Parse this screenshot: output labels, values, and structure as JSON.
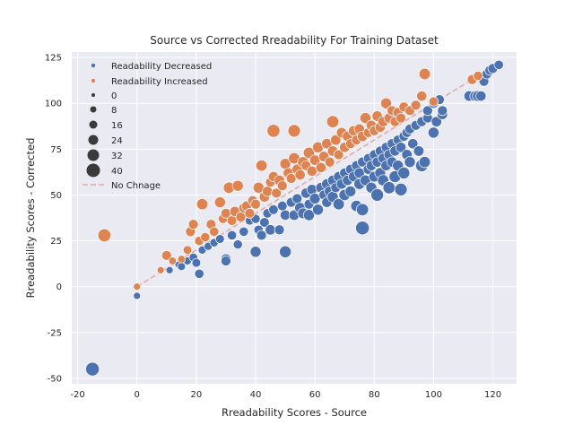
{
  "chart_data": {
    "type": "scatter",
    "title": "Source vs Corrected Rreadability For Training Dataset",
    "xlabel": "Rreadability Scores - Source",
    "ylabel": "Rreadability Scores - Corrected",
    "xlim": [
      -22,
      128
    ],
    "ylim": [
      -53,
      128
    ],
    "xticks": [
      -20,
      0,
      20,
      40,
      60,
      80,
      100,
      120
    ],
    "yticks": [
      -50,
      -25,
      0,
      25,
      50,
      75,
      100,
      125
    ],
    "grid": true,
    "legend_position": "upper-left",
    "colors": {
      "decreased": "#4c72b0",
      "increased": "#dd8452",
      "reference": "#e4a5a5",
      "background": "#eaeaf2"
    },
    "legend": {
      "hue_items": [
        "Readability Decreased",
        "Readability Increased"
      ],
      "size_items": [
        "0",
        "8",
        "16",
        "24",
        "32",
        "40"
      ],
      "line_item": "No Chnage"
    },
    "reference_line": {
      "name": "No Chnage",
      "from": [
        0,
        0
      ],
      "to": [
        122,
        122
      ]
    },
    "series": [
      {
        "name": "Readability Decreased",
        "points": [
          [
            -15,
            -45,
            30
          ],
          [
            0,
            -5,
            4
          ],
          [
            8,
            9,
            4
          ],
          [
            11,
            9,
            4
          ],
          [
            14,
            12,
            4
          ],
          [
            15,
            11,
            6
          ],
          [
            17,
            14,
            6
          ],
          [
            19,
            16,
            7
          ],
          [
            20,
            13,
            8
          ],
          [
            21,
            7,
            10
          ],
          [
            22,
            20,
            6
          ],
          [
            24,
            22,
            6
          ],
          [
            26,
            24,
            7
          ],
          [
            28,
            26,
            8
          ],
          [
            30,
            15,
            14
          ],
          [
            30,
            14,
            12
          ],
          [
            32,
            28,
            10
          ],
          [
            34,
            23,
            9
          ],
          [
            36,
            30,
            10
          ],
          [
            38,
            36,
            8
          ],
          [
            40,
            37,
            9
          ],
          [
            40,
            19,
            16
          ],
          [
            41,
            31,
            10
          ],
          [
            42,
            28,
            12
          ],
          [
            43,
            35,
            11
          ],
          [
            44,
            40,
            10
          ],
          [
            45,
            31,
            14
          ],
          [
            46,
            42,
            11
          ],
          [
            48,
            31,
            12
          ],
          [
            49,
            44,
            11
          ],
          [
            50,
            39,
            13
          ],
          [
            50,
            19,
            20
          ],
          [
            52,
            46,
            12
          ],
          [
            53,
            39,
            14
          ],
          [
            54,
            48,
            12
          ],
          [
            55,
            43,
            15
          ],
          [
            56,
            40,
            15
          ],
          [
            57,
            51,
            13
          ],
          [
            58,
            39,
            17
          ],
          [
            58,
            45,
            12
          ],
          [
            59,
            53,
            13
          ],
          [
            60,
            48,
            15
          ],
          [
            61,
            42,
            16
          ],
          [
            62,
            54,
            14
          ],
          [
            63,
            50,
            12
          ],
          [
            64,
            46,
            13
          ],
          [
            64,
            56,
            14
          ],
          [
            65,
            52,
            15
          ],
          [
            66,
            49,
            16
          ],
          [
            66,
            58,
            13
          ],
          [
            67,
            54,
            12
          ],
          [
            68,
            45,
            18
          ],
          [
            68,
            60,
            13
          ],
          [
            69,
            56,
            14
          ],
          [
            70,
            50,
            18
          ],
          [
            70,
            62,
            12
          ],
          [
            71,
            58,
            13
          ],
          [
            72,
            52,
            15
          ],
          [
            72,
            64,
            12
          ],
          [
            73,
            60,
            13
          ],
          [
            74,
            44,
            18
          ],
          [
            74,
            66,
            12
          ],
          [
            75,
            56,
            16
          ],
          [
            75,
            62,
            14
          ],
          [
            76,
            32,
            30
          ],
          [
            76,
            42,
            22
          ],
          [
            76,
            68,
            12
          ],
          [
            77,
            58,
            15
          ],
          [
            78,
            64,
            13
          ],
          [
            78,
            70,
            12
          ],
          [
            79,
            54,
            16
          ],
          [
            79,
            66,
            13
          ],
          [
            80,
            60,
            15
          ],
          [
            80,
            72,
            12
          ],
          [
            81,
            50,
            24
          ],
          [
            81,
            68,
            13
          ],
          [
            82,
            62,
            15
          ],
          [
            82,
            74,
            12
          ],
          [
            83,
            58,
            18
          ],
          [
            83,
            70,
            13
          ],
          [
            84,
            66,
            14
          ],
          [
            84,
            76,
            12
          ],
          [
            85,
            54,
            22
          ],
          [
            85,
            72,
            13
          ],
          [
            86,
            68,
            14
          ],
          [
            86,
            78,
            12
          ],
          [
            87,
            60,
            20
          ],
          [
            87,
            74,
            13
          ],
          [
            88,
            66,
            16
          ],
          [
            88,
            80,
            12
          ],
          [
            89,
            53,
            24
          ],
          [
            89,
            76,
            13
          ],
          [
            90,
            62,
            20
          ],
          [
            90,
            82,
            12
          ],
          [
            91,
            72,
            14
          ],
          [
            91,
            84,
            12
          ],
          [
            92,
            68,
            16
          ],
          [
            92,
            86,
            12
          ],
          [
            93,
            78,
            13
          ],
          [
            94,
            88,
            12
          ],
          [
            95,
            74,
            14
          ],
          [
            96,
            66,
            22
          ],
          [
            96,
            90,
            12
          ],
          [
            97,
            68,
            18
          ],
          [
            98,
            92,
            12
          ],
          [
            98,
            96,
            12
          ],
          [
            100,
            84,
            16
          ],
          [
            100,
            100,
            12
          ],
          [
            101,
            90,
            14
          ],
          [
            102,
            102,
            12
          ],
          [
            103,
            94,
            14
          ],
          [
            103,
            96,
            12
          ],
          [
            112,
            104,
            14
          ],
          [
            114,
            104,
            14
          ],
          [
            115,
            104,
            16
          ],
          [
            116,
            104,
            13
          ],
          [
            117,
            112,
            12
          ],
          [
            118,
            116,
            12
          ],
          [
            119,
            118,
            12
          ],
          [
            120,
            119,
            12
          ],
          [
            122,
            121,
            10
          ]
        ]
      },
      {
        "name": "Readability Increased",
        "points": [
          [
            -11,
            28,
            26
          ],
          [
            0,
            0,
            4
          ],
          [
            8,
            9,
            4
          ],
          [
            10,
            17,
            12
          ],
          [
            12,
            14,
            5
          ],
          [
            15,
            15,
            5
          ],
          [
            17,
            20,
            8
          ],
          [
            18,
            30,
            12
          ],
          [
            19,
            34,
            12
          ],
          [
            21,
            25,
            10
          ],
          [
            22,
            45,
            18
          ],
          [
            23,
            27,
            10
          ],
          [
            25,
            34,
            12
          ],
          [
            26,
            30,
            10
          ],
          [
            28,
            46,
            16
          ],
          [
            29,
            37,
            10
          ],
          [
            30,
            40,
            12
          ],
          [
            31,
            54,
            18
          ],
          [
            32,
            36,
            11
          ],
          [
            33,
            41,
            13
          ],
          [
            34,
            55,
            16
          ],
          [
            35,
            38,
            12
          ],
          [
            36,
            43,
            12
          ],
          [
            37,
            44,
            13
          ],
          [
            38,
            40,
            12
          ],
          [
            39,
            47,
            11
          ],
          [
            40,
            45,
            12
          ],
          [
            41,
            54,
            16
          ],
          [
            42,
            66,
            18
          ],
          [
            43,
            49,
            14
          ],
          [
            44,
            52,
            13
          ],
          [
            45,
            57,
            12
          ],
          [
            46,
            85,
            26
          ],
          [
            46,
            60,
            13
          ],
          [
            47,
            51,
            12
          ],
          [
            48,
            58,
            14
          ],
          [
            49,
            55,
            12
          ],
          [
            50,
            67,
            16
          ],
          [
            51,
            62,
            13
          ],
          [
            52,
            59,
            12
          ],
          [
            53,
            85,
            24
          ],
          [
            53,
            70,
            18
          ],
          [
            54,
            64,
            14
          ],
          [
            55,
            61,
            13
          ],
          [
            56,
            68,
            16
          ],
          [
            57,
            66,
            12
          ],
          [
            58,
            73,
            18
          ],
          [
            59,
            63,
            13
          ],
          [
            60,
            69,
            14
          ],
          [
            61,
            76,
            16
          ],
          [
            62,
            65,
            13
          ],
          [
            63,
            71,
            14
          ],
          [
            64,
            78,
            14
          ],
          [
            65,
            68,
            12
          ],
          [
            66,
            90,
            22
          ],
          [
            66,
            74,
            14
          ],
          [
            67,
            80,
            14
          ],
          [
            68,
            72,
            12
          ],
          [
            69,
            84,
            14
          ],
          [
            70,
            76,
            13
          ],
          [
            71,
            82,
            14
          ],
          [
            72,
            78,
            12
          ],
          [
            73,
            85,
            13
          ],
          [
            74,
            80,
            12
          ],
          [
            75,
            86,
            13
          ],
          [
            76,
            82,
            14
          ],
          [
            77,
            92,
            16
          ],
          [
            78,
            84,
            12
          ],
          [
            79,
            88,
            13
          ],
          [
            80,
            85,
            12
          ],
          [
            81,
            93,
            14
          ],
          [
            82,
            87,
            13
          ],
          [
            83,
            90,
            14
          ],
          [
            84,
            100,
            16
          ],
          [
            85,
            92,
            13
          ],
          [
            86,
            96,
            12
          ],
          [
            87,
            90,
            12
          ],
          [
            88,
            95,
            13
          ],
          [
            89,
            92,
            12
          ],
          [
            90,
            98,
            12
          ],
          [
            92,
            96,
            12
          ],
          [
            94,
            99,
            12
          ],
          [
            96,
            104,
            13
          ],
          [
            97,
            116,
            18
          ],
          [
            100,
            101,
            10
          ],
          [
            113,
            113,
            12
          ],
          [
            115,
            115,
            10
          ]
        ]
      }
    ]
  }
}
